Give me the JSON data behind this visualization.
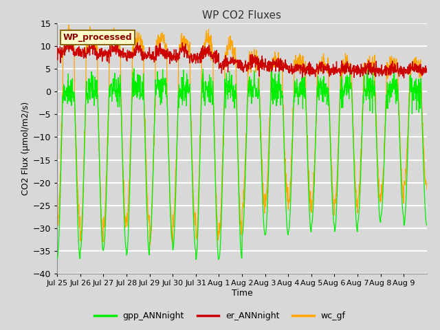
{
  "title": "WP CO2 Fluxes",
  "xlabel": "Time",
  "ylabel": "CO2 Flux (μmol/m2/s)",
  "ylim": [
    -40,
    15
  ],
  "yticks": [
    -40,
    -35,
    -30,
    -25,
    -20,
    -15,
    -10,
    -5,
    0,
    5,
    10,
    15
  ],
  "bg_color": "#d8d8d8",
  "grid_color": "#ffffff",
  "color_gpp": "#00ee00",
  "color_er": "#cc0000",
  "color_wc": "#ffa500",
  "legend_labels": [
    "gpp_ANNnight",
    "er_ANNnight",
    "wc_gf"
  ],
  "watermark_text": "WP_processed",
  "watermark_fgcolor": "#8b0000",
  "watermark_bgcolor": "#ffffcc",
  "watermark_edgecolor": "#8b6914",
  "n_days": 16,
  "ppd": 96,
  "tick_labels": [
    "Jul 25",
    "Jul 26",
    "Jul 27",
    "Jul 28",
    "Jul 29",
    "Jul 30",
    "Jul 31",
    "Aug 1",
    "Aug 2",
    "Aug 3",
    "Aug 4",
    "Aug 5",
    "Aug 6",
    "Aug 7",
    "Aug 8",
    "Aug 9"
  ]
}
